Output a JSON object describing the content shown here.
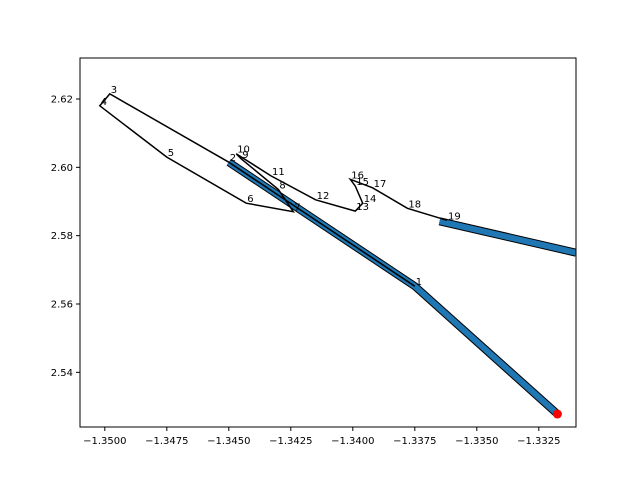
{
  "chart_data": {
    "type": "line",
    "title": "",
    "xlabel": "",
    "ylabel": "",
    "xlim": [
      -1.351,
      -1.331
    ],
    "ylim": [
      2.524,
      2.632
    ],
    "xticks": [
      -1.35,
      -1.3475,
      -1.345,
      -1.3425,
      -1.34,
      -1.3375,
      -1.335,
      -1.3325
    ],
    "xtick_labels": [
      "−1.3500",
      "−1.3475",
      "−1.3450",
      "−1.3425",
      "−1.3400",
      "−1.3375",
      "−1.3350",
      "−1.3325"
    ],
    "yticks": [
      2.54,
      2.56,
      2.58,
      2.6,
      2.62
    ],
    "ytick_labels": [
      "2.54",
      "2.56",
      "2.58",
      "2.60",
      "2.62"
    ],
    "grid": false,
    "colors": {
      "band": "#1f77b4",
      "outline": "#000000",
      "start_marker": "#ff0000"
    },
    "start_point": {
      "x": -1.33175,
      "y": 2.5278
    },
    "band": [
      {
        "x": -1.33175,
        "y": 2.5278
      },
      {
        "x": -1.3375,
        "y": 2.5652
      },
      {
        "x": -1.345,
        "y": 2.6015
      }
    ],
    "tail_band": [
      {
        "x": -1.3365,
        "y": 2.5842
      },
      {
        "x": -1.331,
        "y": 2.575
      }
    ],
    "points": [
      {
        "label": "1",
        "x": -1.3375,
        "y": 2.5652
      },
      {
        "label": "2",
        "x": -1.345,
        "y": 2.6015
      },
      {
        "label": "3",
        "x": -1.3498,
        "y": 2.6215
      },
      {
        "label": "4",
        "x": -1.3502,
        "y": 2.618
      },
      {
        "label": "5",
        "x": -1.3475,
        "y": 2.603
      },
      {
        "label": "6",
        "x": -1.3443,
        "y": 2.5895
      },
      {
        "label": "7",
        "x": -1.3424,
        "y": 2.587
      },
      {
        "label": "8",
        "x": -1.343,
        "y": 2.5935
      },
      {
        "label": "9",
        "x": -1.3445,
        "y": 2.6025
      },
      {
        "label": "10",
        "x": -1.3447,
        "y": 2.604
      },
      {
        "label": "11",
        "x": -1.3433,
        "y": 2.5975
      },
      {
        "label": "12",
        "x": -1.3415,
        "y": 2.5905
      },
      {
        "label": "13",
        "x": -1.3399,
        "y": 2.5872
      },
      {
        "label": "14",
        "x": -1.3396,
        "y": 2.5895
      },
      {
        "label": "15",
        "x": -1.3399,
        "y": 2.5945
      },
      {
        "label": "16",
        "x": -1.3401,
        "y": 2.5965
      },
      {
        "label": "17",
        "x": -1.3392,
        "y": 2.594
      },
      {
        "label": "18",
        "x": -1.3378,
        "y": 2.588
      },
      {
        "label": "19",
        "x": -1.3362,
        "y": 2.5845
      }
    ]
  }
}
